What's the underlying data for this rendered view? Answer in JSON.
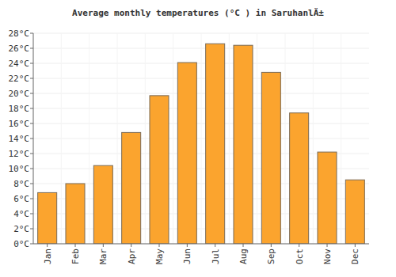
{
  "chart_data": {
    "type": "bar",
    "title": "Average monthly temperatures (°C ) in SaruhanlÄ±",
    "categories": [
      "Jan",
      "Feb",
      "Mar",
      "Apr",
      "May",
      "Jun",
      "Jul",
      "Aug",
      "Sep",
      "Oct",
      "Nov",
      "Dec"
    ],
    "values": [
      6.8,
      8.0,
      10.4,
      14.8,
      19.7,
      24.1,
      26.6,
      26.4,
      22.8,
      17.4,
      12.2,
      8.5
    ],
    "color": "#fba42e",
    "ylim": [
      0,
      28
    ],
    "yticks": [
      {
        "value": 0,
        "label": "0°C"
      },
      {
        "value": 2,
        "label": "2°C"
      },
      {
        "value": 4,
        "label": "4°C"
      },
      {
        "value": 6,
        "label": "6°C"
      },
      {
        "value": 8,
        "label": "8°C"
      },
      {
        "value": 10,
        "label": "10°C"
      },
      {
        "value": 12,
        "label": "12°C"
      },
      {
        "value": 14,
        "label": "14°C"
      },
      {
        "value": 16,
        "label": "16°C"
      },
      {
        "value": 18,
        "label": "18°C"
      },
      {
        "value": 20,
        "label": "20°C"
      },
      {
        "value": 22,
        "label": "22°C"
      },
      {
        "value": 24,
        "label": "24°C"
      },
      {
        "value": 26,
        "label": "26°C"
      },
      {
        "value": 28,
        "label": "28°C"
      }
    ],
    "grid": true
  }
}
